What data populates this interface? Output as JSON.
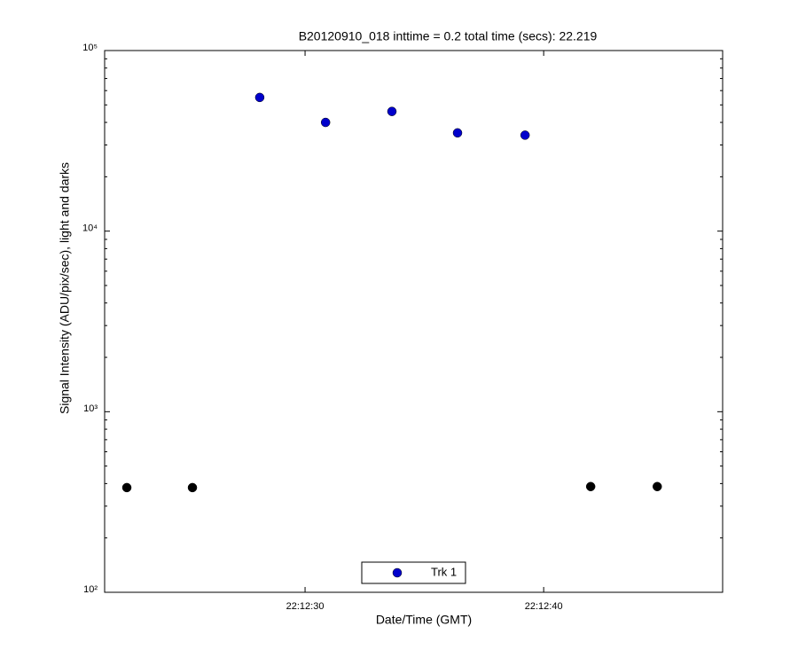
{
  "chart_data": {
    "type": "scatter",
    "title": "B20120910_018 inttime = 0.2 total time (secs): 22.219",
    "xlabel": "Date/Time (GMT)",
    "ylabel": "Signal Intensity (ADU/pix/sec), light and darks",
    "xlim": [
      21.6,
      47.5
    ],
    "xticks": [
      {
        "value": 30,
        "label": "22:12:30"
      },
      {
        "value": 40,
        "label": "22:12:40"
      }
    ],
    "ylim": [
      100,
      100000
    ],
    "yticks": [
      {
        "value": 100,
        "label": "10²"
      },
      {
        "value": 1000,
        "label": "10³"
      },
      {
        "value": 10000,
        "label": "10⁴"
      },
      {
        "value": 100000,
        "label": "10⁵"
      }
    ],
    "log_y": true,
    "grid": false,
    "legend": "bottom",
    "series": [
      {
        "name": "Trk 1",
        "color": "#0000cc",
        "x": [
          28.1,
          30.86,
          33.64,
          36.39,
          39.22
        ],
        "values": [
          55000,
          40000,
          46000,
          35000,
          34000
        ]
      },
      {
        "color": "#000000",
        "x": [
          22.53,
          25.28,
          41.97,
          44.76
        ],
        "values": [
          380,
          380,
          385,
          385
        ]
      }
    ]
  }
}
